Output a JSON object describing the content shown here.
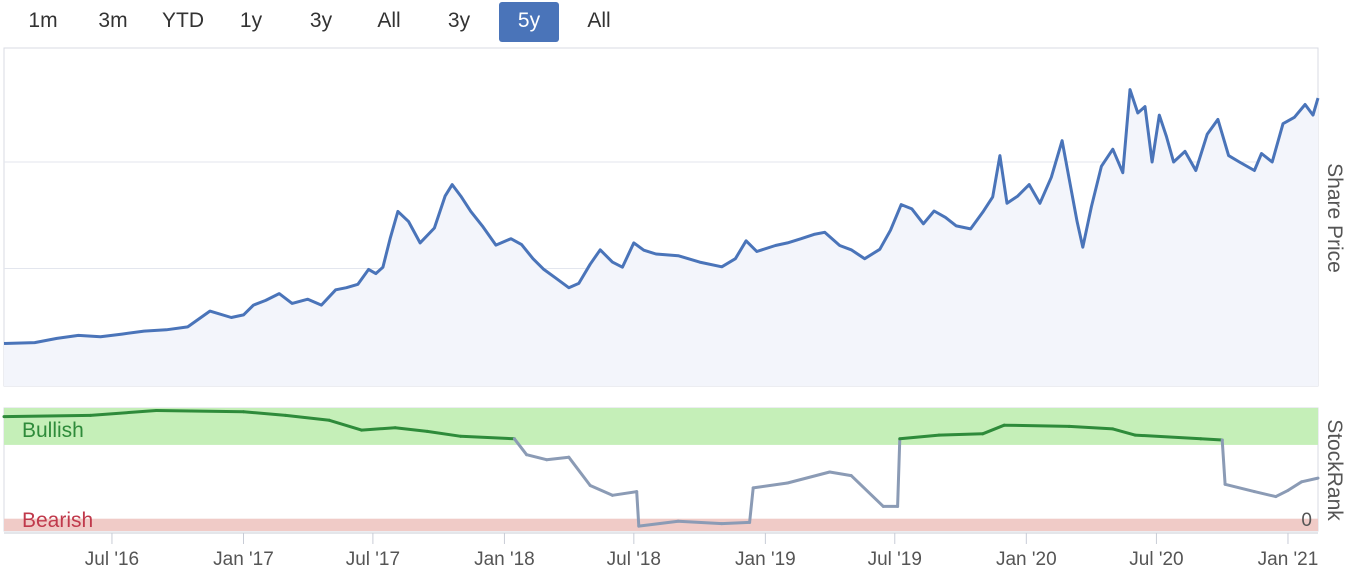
{
  "range_selector": [
    {
      "label": "1m",
      "active": false
    },
    {
      "label": "3m",
      "active": false
    },
    {
      "label": "YTD",
      "active": false
    },
    {
      "label": "1y",
      "active": false
    },
    {
      "label": "3y",
      "active": false
    },
    {
      "label": "All",
      "active": false
    },
    {
      "label": "3y",
      "active": false
    },
    {
      "label": "5y",
      "active": true
    },
    {
      "label": "All",
      "active": false
    }
  ],
  "colors": {
    "price_line": "#4a74b9",
    "price_fill": "#f3f5fb",
    "bullish_band": "#c5efb8",
    "bearish_band": "#f0cbc7",
    "bullish_line": "#2e8b3a",
    "neutral_line": "#8b9bb5",
    "bullish_text": "#2e8b3a",
    "bearish_text": "#c0394b",
    "active_button": "#4a74b9"
  },
  "chart_data": [
    {
      "type": "area",
      "ylabel": "Share Price",
      "ylim": [
        0,
        65
      ],
      "yticks": [
        0,
        25,
        50
      ],
      "x_ticks": [
        "Jul '16",
        "Jan '17",
        "Jul '17",
        "Jan '18",
        "Jul '18",
        "Jan '19",
        "Jul '19",
        "Jan '20",
        "Jul '20",
        "Jan '21"
      ],
      "grid": true,
      "points": [
        [
          "2016-02-01",
          7.4
        ],
        [
          "2016-03-15",
          7.6
        ],
        [
          "2016-04-15",
          8.6
        ],
        [
          "2016-05-15",
          9.3
        ],
        [
          "2016-06-15",
          9.0
        ],
        [
          "2016-07-15",
          9.6
        ],
        [
          "2016-08-15",
          10.3
        ],
        [
          "2016-09-15",
          10.6
        ],
        [
          "2016-10-15",
          11.3
        ],
        [
          "2016-11-15",
          15.0
        ],
        [
          "2016-12-15",
          13.5
        ],
        [
          "2017-01-01",
          14.1
        ],
        [
          "2017-01-15",
          16.4
        ],
        [
          "2017-02-01",
          17.5
        ],
        [
          "2017-02-20",
          19.1
        ],
        [
          "2017-03-10",
          16.8
        ],
        [
          "2017-04-01",
          17.8
        ],
        [
          "2017-04-20",
          16.4
        ],
        [
          "2017-05-10",
          20.0
        ],
        [
          "2017-05-25",
          20.5
        ],
        [
          "2017-06-10",
          21.3
        ],
        [
          "2017-06-25",
          24.8
        ],
        [
          "2017-07-05",
          23.8
        ],
        [
          "2017-07-15",
          25.3
        ],
        [
          "2017-07-25",
          32.0
        ],
        [
          "2017-08-05",
          38.4
        ],
        [
          "2017-08-20",
          36.0
        ],
        [
          "2017-09-05",
          31.0
        ],
        [
          "2017-09-25",
          34.5
        ],
        [
          "2017-10-10",
          42.0
        ],
        [
          "2017-10-20",
          44.7
        ],
        [
          "2017-11-01",
          42.0
        ],
        [
          "2017-11-15",
          38.4
        ],
        [
          "2017-12-01",
          35.0
        ],
        [
          "2017-12-20",
          30.5
        ],
        [
          "2018-01-10",
          32.0
        ],
        [
          "2018-01-25",
          30.6
        ],
        [
          "2018-02-10",
          27.3
        ],
        [
          "2018-02-25",
          24.8
        ],
        [
          "2018-03-15",
          22.6
        ],
        [
          "2018-04-01",
          20.5
        ],
        [
          "2018-04-15",
          21.5
        ],
        [
          "2018-05-01",
          26.0
        ],
        [
          "2018-05-15",
          29.4
        ],
        [
          "2018-06-01",
          26.5
        ],
        [
          "2018-06-15",
          25.3
        ],
        [
          "2018-07-01",
          31.0
        ],
        [
          "2018-07-15",
          29.3
        ],
        [
          "2018-08-01",
          28.4
        ],
        [
          "2018-09-01",
          28.0
        ],
        [
          "2018-10-01",
          26.5
        ],
        [
          "2018-11-01",
          25.4
        ],
        [
          "2018-11-20",
          27.3
        ],
        [
          "2018-12-05",
          31.5
        ],
        [
          "2018-12-20",
          29.0
        ],
        [
          "2019-01-15",
          30.4
        ],
        [
          "2019-02-01",
          31.0
        ],
        [
          "2019-02-20",
          32.0
        ],
        [
          "2019-03-10",
          33.0
        ],
        [
          "2019-03-25",
          33.5
        ],
        [
          "2019-04-15",
          30.4
        ],
        [
          "2019-05-01",
          29.4
        ],
        [
          "2019-05-20",
          27.3
        ],
        [
          "2019-06-10",
          29.5
        ],
        [
          "2019-06-25",
          34.0
        ],
        [
          "2019-07-10",
          40.0
        ],
        [
          "2019-07-25",
          39.0
        ],
        [
          "2019-08-10",
          35.5
        ],
        [
          "2019-08-25",
          38.5
        ],
        [
          "2019-09-10",
          37.0
        ],
        [
          "2019-09-25",
          35.0
        ],
        [
          "2019-10-15",
          34.3
        ],
        [
          "2019-11-01",
          38.2
        ],
        [
          "2019-11-15",
          41.8
        ],
        [
          "2019-11-25",
          51.5
        ],
        [
          "2019-12-05",
          40.3
        ],
        [
          "2019-12-20",
          42.0
        ],
        [
          "2020-01-05",
          44.7
        ],
        [
          "2020-01-20",
          40.3
        ],
        [
          "2020-02-05",
          46.4
        ],
        [
          "2020-02-20",
          55.0
        ],
        [
          "2020-03-01",
          46.0
        ],
        [
          "2020-03-12",
          36.0
        ],
        [
          "2020-03-20",
          30.0
        ],
        [
          "2020-04-01",
          39.5
        ],
        [
          "2020-04-15",
          49.0
        ],
        [
          "2020-05-01",
          53.0
        ],
        [
          "2020-05-15",
          47.5
        ],
        [
          "2020-05-25",
          67.0
        ],
        [
          "2020-06-05",
          61.5
        ],
        [
          "2020-06-15",
          63.0
        ],
        [
          "2020-06-25",
          50.0
        ],
        [
          "2020-07-05",
          61.0
        ],
        [
          "2020-07-15",
          56.0
        ],
        [
          "2020-07-25",
          50.0
        ],
        [
          "2020-08-10",
          52.5
        ],
        [
          "2020-08-25",
          48.0
        ],
        [
          "2020-09-10",
          56.5
        ],
        [
          "2020-09-25",
          60.0
        ],
        [
          "2020-10-10",
          51.5
        ],
        [
          "2020-10-25",
          50.0
        ],
        [
          "2020-11-15",
          48.0
        ],
        [
          "2020-11-25",
          52.0
        ],
        [
          "2020-12-10",
          50.0
        ],
        [
          "2020-12-25",
          59.0
        ],
        [
          "2021-01-10",
          60.5
        ],
        [
          "2021-01-25",
          63.5
        ],
        [
          "2021-02-05",
          61.0
        ],
        [
          "2021-02-12",
          65.0
        ]
      ]
    },
    {
      "type": "line",
      "ylabel": "StockRank",
      "ylim": [
        0,
        100
      ],
      "yticks": [
        0
      ],
      "bands": [
        {
          "label": "Bullish",
          "from": 70,
          "to": 100
        },
        {
          "label": "Bearish",
          "from": 0,
          "to": 10
        }
      ],
      "bullish_threshold": 70,
      "points": [
        [
          "2016-02-01",
          93
        ],
        [
          "2016-06-01",
          94
        ],
        [
          "2016-09-01",
          98
        ],
        [
          "2017-01-01",
          97
        ],
        [
          "2017-03-01",
          94
        ],
        [
          "2017-05-01",
          90
        ],
        [
          "2017-06-15",
          82
        ],
        [
          "2017-08-01",
          84
        ],
        [
          "2017-09-15",
          81
        ],
        [
          "2017-11-01",
          77
        ],
        [
          "2018-01-15",
          75
        ],
        [
          "2018-02-01",
          62
        ],
        [
          "2018-03-01",
          58
        ],
        [
          "2018-04-01",
          60
        ],
        [
          "2018-05-01",
          37
        ],
        [
          "2018-06-01",
          29
        ],
        [
          "2018-07-05",
          32
        ],
        [
          "2018-07-08",
          4
        ],
        [
          "2018-09-01",
          8
        ],
        [
          "2018-11-01",
          6
        ],
        [
          "2018-12-10",
          7
        ],
        [
          "2018-12-15",
          35
        ],
        [
          "2019-02-01",
          39
        ],
        [
          "2019-04-01",
          48
        ],
        [
          "2019-05-01",
          45
        ],
        [
          "2019-06-15",
          20
        ],
        [
          "2019-07-05",
          20
        ],
        [
          "2019-07-08",
          75
        ],
        [
          "2019-09-01",
          78
        ],
        [
          "2019-11-01",
          79
        ],
        [
          "2019-12-01",
          86
        ],
        [
          "2020-03-01",
          85
        ],
        [
          "2020-05-01",
          83
        ],
        [
          "2020-06-01",
          78
        ],
        [
          "2020-09-01",
          75
        ],
        [
          "2020-10-01",
          74
        ],
        [
          "2020-10-05",
          38
        ],
        [
          "2020-11-15",
          32
        ],
        [
          "2020-12-15",
          28
        ],
        [
          "2021-01-01",
          33
        ],
        [
          "2021-01-20",
          40
        ],
        [
          "2021-02-12",
          43
        ]
      ]
    }
  ]
}
